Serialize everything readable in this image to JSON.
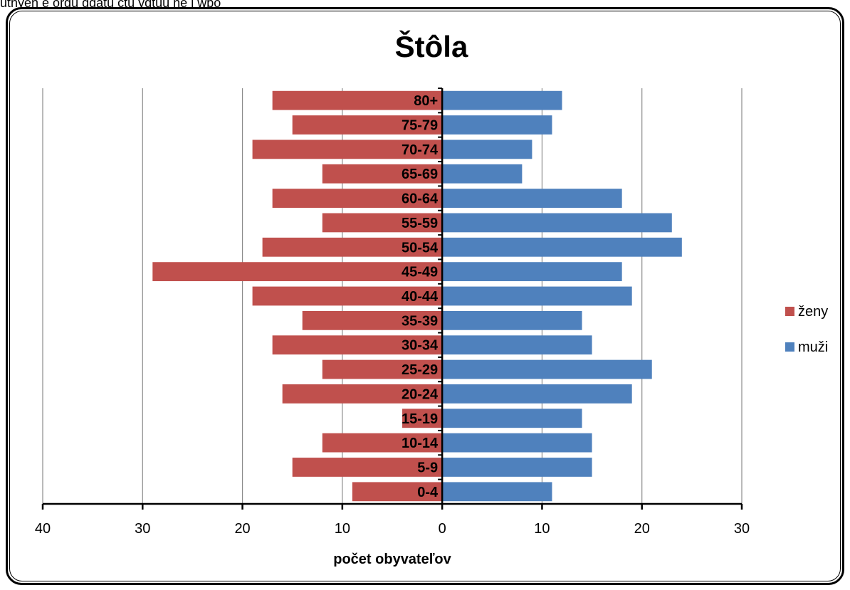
{
  "header_fragment": "utnyen e ordu ddatu ctu ydtuu ne i wbo",
  "chart_data": {
    "type": "bar",
    "orientation": "horizontal",
    "title": "Štôla",
    "xlabel": "počet obyvateľov",
    "ylabel": "",
    "xlim": [
      -40,
      30
    ],
    "x_ticks": [
      -40,
      -30,
      -20,
      -10,
      0,
      10,
      20,
      30
    ],
    "x_tick_labels": [
      "40",
      "30",
      "20",
      "10",
      "0",
      "10",
      "20",
      "30"
    ],
    "categories": [
      "0-4",
      "5-9",
      "10-14",
      "15-19",
      "20-24",
      "25-29",
      "30-34",
      "35-39",
      "40-44",
      "45-49",
      "50-54",
      "55-59",
      "60-64",
      "65-69",
      "70-74",
      "75-79",
      "80+"
    ],
    "series": [
      {
        "name": "ženy",
        "color": "#C0504D",
        "values": [
          -9,
          -15,
          -12,
          -4,
          -16,
          -12,
          -17,
          -14,
          -19,
          -29,
          -18,
          -12,
          -17,
          -12,
          -19,
          -15,
          -17
        ]
      },
      {
        "name": "muži",
        "color": "#4F81BD",
        "values": [
          11,
          15,
          15,
          14,
          19,
          21,
          15,
          14,
          19,
          18,
          24,
          23,
          18,
          8,
          9,
          11,
          12
        ]
      }
    ],
    "grid": true,
    "legend_position": "right"
  }
}
